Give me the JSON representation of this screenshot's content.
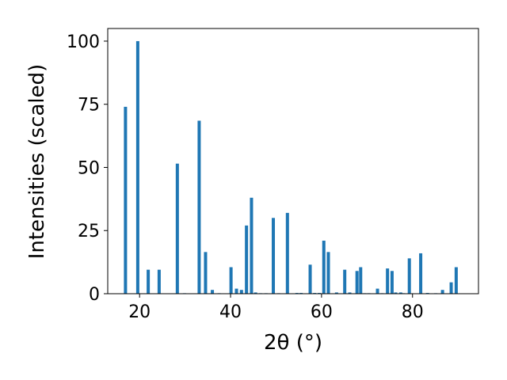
{
  "chart_data": {
    "type": "bar",
    "xlabel": "2θ (°)",
    "ylabel": "Intensities (scaled)",
    "xlim": [
      13,
      94.5
    ],
    "ylim": [
      0,
      105
    ],
    "xticks": [
      20,
      40,
      60,
      80
    ],
    "yticks": [
      0,
      25,
      50,
      75,
      100
    ],
    "bar_color": "#1f77b4",
    "grid": false,
    "x": [
      16.9,
      19.6,
      21.9,
      24.3,
      28.3,
      29.9,
      33.1,
      34.5,
      36.0,
      37.5,
      40.1,
      41.3,
      42.4,
      43.5,
      44.6,
      45.5,
      46.6,
      47.8,
      49.4,
      50.6,
      52.5,
      54.6,
      55.5,
      57.5,
      58.5,
      59.5,
      60.5,
      61.5,
      63.3,
      65.1,
      66.2,
      67.8,
      68.6,
      69.5,
      70.4,
      72.3,
      73.3,
      74.5,
      75.5,
      76.3,
      77.4,
      78.0,
      79.3,
      81.8,
      83.3,
      85.1,
      86.6,
      88.5,
      89.6
    ],
    "values": [
      74,
      100,
      9.5,
      9.5,
      51.5,
      0.2,
      68.5,
      16.5,
      1.5,
      0.2,
      10.5,
      2,
      1.5,
      27,
      38,
      0.5,
      0.2,
      0.2,
      30,
      0.2,
      32,
      0.3,
      0.3,
      11.5,
      0.3,
      0.3,
      21,
      16.5,
      0.5,
      9.5,
      0.5,
      9,
      10.5,
      0.2,
      0.2,
      2,
      0.2,
      10,
      9,
      0.5,
      0.5,
      0.2,
      14,
      16,
      0.3,
      0.2,
      1.5,
      4.5,
      10.5
    ]
  }
}
